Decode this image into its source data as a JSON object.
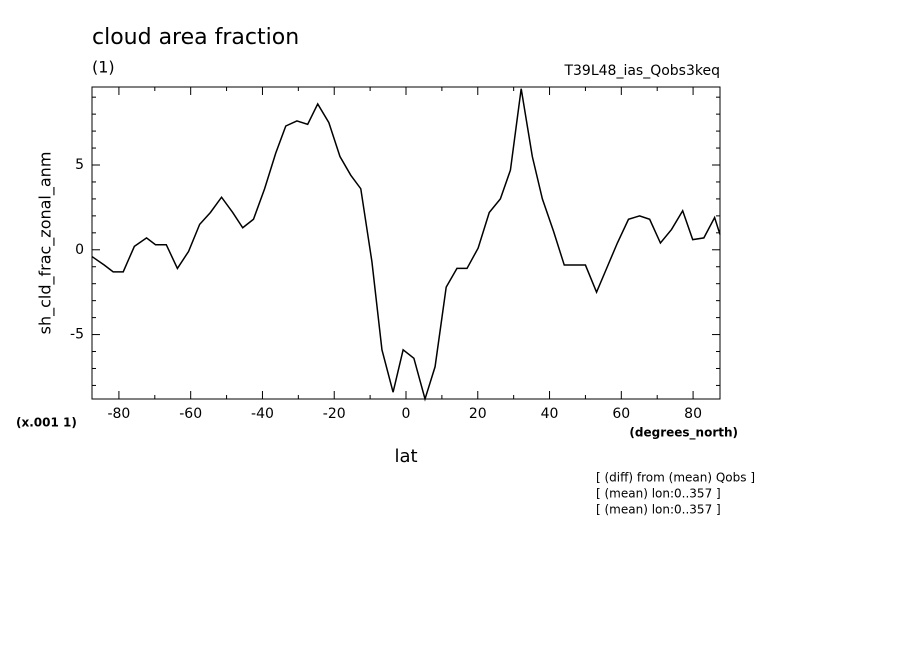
{
  "chart_data": {
    "type": "line",
    "title": "cloud area fraction",
    "subtitle": "(1)",
    "run_label": "T39L48_ias_Qobs3keq",
    "ylabel": "sh_cld_frac_zonal_anm",
    "xlabel": "lat",
    "xunits": "(degrees_north)",
    "yscale_note": "(x.001 1)",
    "notes": [
      "[ (diff) from (mean) Qobs ]",
      "[ (mean) lon:0..357 ]",
      "[ (mean) lon:0..357 ]"
    ],
    "xlim": [
      -87.5,
      87.5
    ],
    "ylim": [
      -8.8,
      9.6
    ],
    "xticks": [
      -80,
      -60,
      -40,
      -20,
      0,
      20,
      40,
      60,
      80
    ],
    "yticks": [
      -5,
      0,
      5
    ],
    "xminorticks": [
      -70,
      -50,
      -30,
      -10,
      10,
      30,
      50,
      70
    ],
    "yminorticks": [
      -8,
      -7,
      -6,
      -4,
      -3,
      -2,
      -1,
      1,
      2,
      3,
      4,
      6,
      7,
      8,
      9
    ],
    "series": [
      {
        "color": "#000000",
        "x": [
          -87.5,
          -84.1,
          -81.6,
          -78.8,
          -75.7,
          -72.3,
          -69.8,
          -66.8,
          -63.7,
          -60.6,
          -57.5,
          -54.5,
          -51.4,
          -48.3,
          -45.5,
          -42.5,
          -39.4,
          -36.3,
          -33.5,
          -30.4,
          -27.4,
          -24.6,
          -21.5,
          -18.4,
          -15.4,
          -12.6,
          -9.5,
          -6.7,
          -3.6,
          -0.8,
          2.2,
          5.3,
          8.1,
          11.2,
          14.2,
          17.0,
          20.1,
          23.2,
          26.3,
          29.1,
          32.1,
          35.2,
          38.0,
          41.1,
          44.1,
          46.9,
          50.0,
          53.1,
          56.1,
          58.9,
          62.0,
          65.1,
          67.9,
          70.9,
          74.0,
          77.1,
          79.9,
          83.0,
          86.0,
          87.5
        ],
        "values": [
          -0.4,
          -0.9,
          -1.3,
          -1.3,
          0.2,
          0.7,
          0.3,
          0.3,
          -1.1,
          -0.1,
          1.5,
          2.2,
          3.1,
          2.2,
          1.3,
          1.8,
          3.6,
          5.7,
          7.3,
          7.6,
          7.4,
          8.6,
          7.5,
          5.5,
          4.4,
          3.6,
          -0.7,
          -5.9,
          -8.4,
          -5.9,
          -6.4,
          -8.8,
          -6.9,
          -2.2,
          -1.1,
          -1.1,
          0.1,
          2.2,
          3.0,
          4.7,
          9.5,
          5.5,
          3.0,
          1.1,
          -0.9,
          -0.9,
          -0.9,
          -2.5,
          -1.0,
          0.4,
          1.8,
          2.0,
          1.8,
          0.4,
          1.2,
          2.3,
          0.6,
          0.7,
          1.9,
          0.9
        ]
      }
    ]
  }
}
